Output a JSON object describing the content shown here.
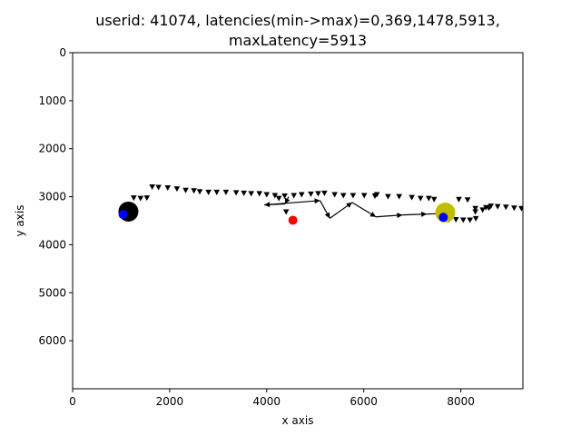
{
  "chart_data": {
    "type": "scatter",
    "title_lines": [
      "userid: 41074, latencies(min->max)=0,369,1478,5913,",
      "maxLatency=5913"
    ],
    "xlabel": "x axis",
    "ylabel": "y axis",
    "xlim": [
      0,
      9280
    ],
    "ylim": [
      7000,
      0
    ],
    "y_inverted": true,
    "grid": false,
    "xticks": [
      0,
      2000,
      4000,
      6000,
      8000
    ],
    "yticks": [
      0,
      1000,
      2000,
      3000,
      4000,
      5000,
      6000
    ],
    "trail_points": [
      [
        1260,
        3030
      ],
      [
        1400,
        3040
      ],
      [
        1530,
        3030
      ],
      [
        1640,
        2800
      ],
      [
        1770,
        2810
      ],
      [
        1960,
        2820
      ],
      [
        2150,
        2840
      ],
      [
        2330,
        2870
      ],
      [
        2500,
        2880
      ],
      [
        2620,
        2900
      ],
      [
        2800,
        2910
      ],
      [
        2970,
        2910
      ],
      [
        3160,
        2910
      ],
      [
        3370,
        2920
      ],
      [
        3530,
        2930
      ],
      [
        3680,
        2940
      ],
      [
        3850,
        2940
      ],
      [
        4000,
        2960
      ],
      [
        4170,
        2980
      ],
      [
        4370,
        2990
      ],
      [
        4560,
        2980
      ],
      [
        4720,
        2960
      ],
      [
        4910,
        2950
      ],
      [
        5060,
        2940
      ],
      [
        5190,
        2930
      ],
      [
        5400,
        2960
      ],
      [
        5580,
        2980
      ],
      [
        5780,
        2980
      ],
      [
        6010,
        2980
      ],
      [
        6230,
        2990
      ],
      [
        6270,
        2960
      ],
      [
        6500,
        3000
      ],
      [
        6730,
        3000
      ],
      [
        6990,
        3020
      ],
      [
        7170,
        3040
      ],
      [
        7340,
        3040
      ],
      [
        7450,
        3060
      ],
      [
        7620,
        3450
      ],
      [
        7760,
        3480
      ],
      [
        7900,
        3480
      ],
      [
        8050,
        3490
      ],
      [
        8190,
        3490
      ],
      [
        8310,
        3460
      ],
      [
        8300,
        3320
      ],
      [
        8300,
        3250
      ],
      [
        8450,
        3280
      ],
      [
        8520,
        3230
      ],
      [
        8580,
        3240
      ],
      [
        8620,
        3200
      ],
      [
        8760,
        3210
      ],
      [
        8930,
        3220
      ],
      [
        9100,
        3240
      ],
      [
        9250,
        3250
      ],
      [
        7960,
        3060
      ],
      [
        8140,
        3070
      ],
      [
        4250,
        3040
      ],
      [
        4400,
        3320
      ]
    ],
    "arrows": [
      [
        4450,
        3000,
        4380,
        3150
      ],
      [
        4380,
        3150,
        3950,
        3170
      ],
      [
        3950,
        3170,
        5100,
        3080
      ],
      [
        5100,
        3080,
        5300,
        3450
      ],
      [
        5300,
        3450,
        5760,
        3120
      ],
      [
        5760,
        3120,
        6250,
        3420
      ],
      [
        6250,
        3420,
        6800,
        3380
      ],
      [
        6800,
        3380,
        7300,
        3360
      ],
      [
        7300,
        3360,
        7720,
        3350
      ]
    ],
    "markers": [
      {
        "x": 1150,
        "y": 3310,
        "r": 11,
        "color": "#000000"
      },
      {
        "x": 7680,
        "y": 3330,
        "r": 11,
        "color": "#bfbf00"
      },
      {
        "x": 4540,
        "y": 3490,
        "r": 5,
        "color": "#ff0000"
      },
      {
        "x": 1040,
        "y": 3370,
        "r": 5,
        "color": "#0000ff"
      },
      {
        "x": 7640,
        "y": 3430,
        "r": 5,
        "color": "#0000ff"
      }
    ]
  }
}
